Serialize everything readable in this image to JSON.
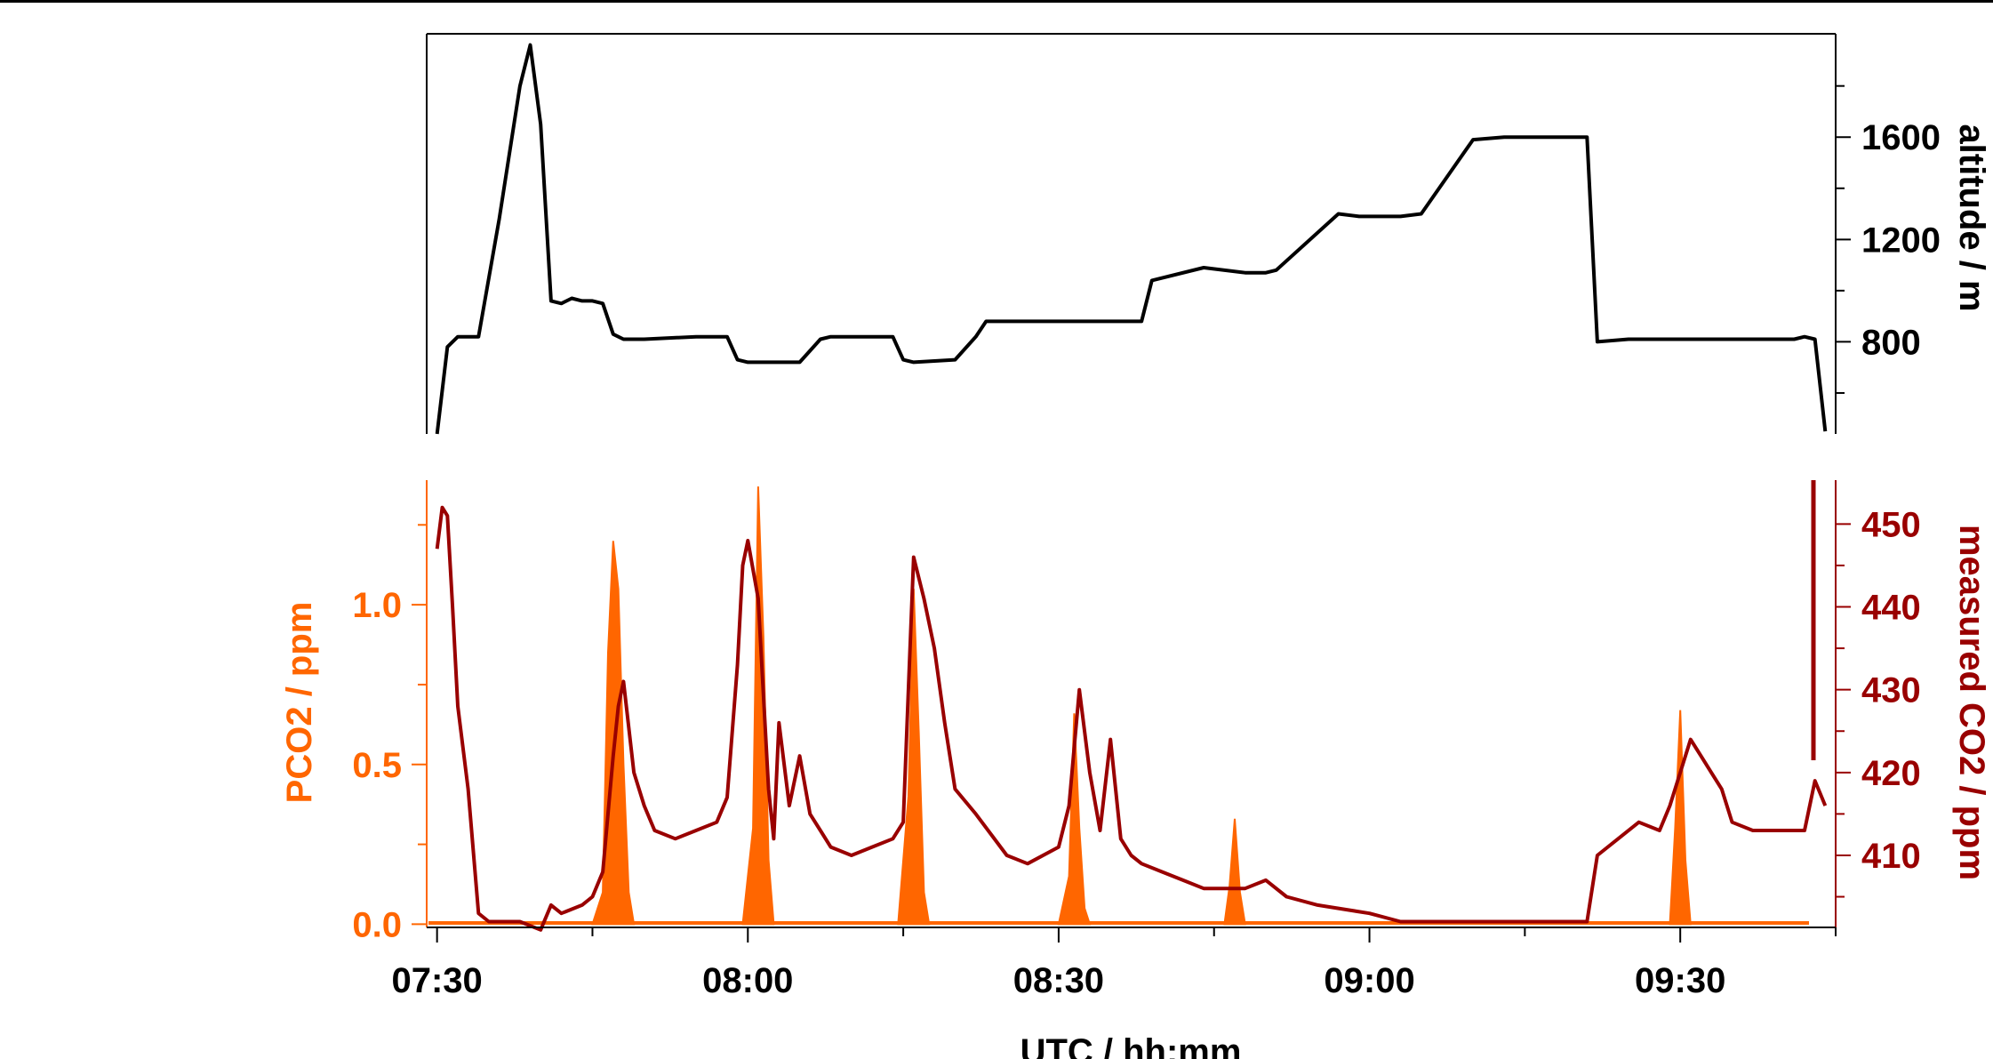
{
  "chart_data": [
    {
      "type": "line",
      "panel": "top",
      "ylabel": "altitude / m",
      "y_axis_side": "right",
      "yticks": [
        800,
        1200,
        1600
      ],
      "ylim": [
        440,
        1990
      ],
      "xlim": [
        "07:29",
        "09:45"
      ],
      "grid": false,
      "series": [
        {
          "color": "#000000",
          "x": [
            "07:30",
            "07:31",
            "07:32",
            "07:33",
            "07:34",
            "07:36",
            "07:38",
            "07:39",
            "07:40",
            "07:41",
            "07:42",
            "07:43",
            "07:44",
            "07:45",
            "07:46",
            "07:47",
            "07:48",
            "07:50",
            "07:55",
            "07:58",
            "07:59",
            "08:00",
            "08:05",
            "08:07",
            "08:08",
            "08:14",
            "08:15",
            "08:16",
            "08:20",
            "08:22",
            "08:23",
            "08:30",
            "08:36",
            "08:38",
            "08:39",
            "08:44",
            "08:48",
            "08:50",
            "08:51",
            "08:57",
            "08:59",
            "09:00",
            "09:03",
            "09:05",
            "09:10",
            "09:13",
            "09:14",
            "09:15",
            "09:16",
            "09:21",
            "09:22",
            "09:25",
            "09:30",
            "09:38",
            "09:41",
            "09:42",
            "09:43",
            "09:44"
          ],
          "values": [
            440,
            780,
            820,
            820,
            820,
            1280,
            1800,
            1960,
            1650,
            960,
            950,
            970,
            960,
            960,
            950,
            830,
            810,
            810,
            820,
            820,
            730,
            720,
            720,
            810,
            820,
            820,
            730,
            720,
            730,
            820,
            880,
            880,
            880,
            880,
            1040,
            1090,
            1070,
            1070,
            1080,
            1300,
            1290,
            1290,
            1290,
            1300,
            1590,
            1600,
            1600,
            1600,
            1600,
            1600,
            800,
            810,
            810,
            810,
            810,
            820,
            810,
            450
          ]
        }
      ]
    },
    {
      "type": "area+line",
      "panel": "bottom",
      "xlabel": "UTC / hh:mm",
      "xticks": [
        "07:30",
        "08:00",
        "08:30",
        "09:00",
        "09:30"
      ],
      "xlim": [
        "07:29",
        "09:45"
      ],
      "grid": false,
      "series": [
        {
          "type": "area",
          "ylabel": "PCO2 / ppm",
          "y_axis_side": "left",
          "color": "#ff6600",
          "yticks": [
            0.0,
            0.5,
            1.0
          ],
          "ytick_labels": [
            "0.0",
            "0.5",
            "1.0"
          ],
          "ylim": [
            -0.01,
            1.39
          ],
          "x": [
            "07:45",
            "07:46",
            "07:46.5",
            "07:47",
            "07:47.5",
            "07:48",
            "07:48.5",
            "07:49",
            "07:59.5",
            "08:00.5",
            "08:01",
            "08:01.5",
            "08:02",
            "08:02.5",
            "08:14.5",
            "08:15.5",
            "08:16",
            "08:16.5",
            "08:17",
            "08:17.5",
            "08:30",
            "08:31",
            "08:31.5",
            "08:32",
            "08:32.5",
            "08:33",
            "08:46",
            "08:46.5",
            "08:47",
            "08:47.5",
            "08:48",
            "09:29",
            "09:29.5",
            "09:30",
            "09:30.5",
            "09:31"
          ],
          "values": [
            0.0,
            0.1,
            0.85,
            1.2,
            1.05,
            0.5,
            0.1,
            0.0,
            0.0,
            0.3,
            1.37,
            0.9,
            0.2,
            0.0,
            0.0,
            0.4,
            1.05,
            0.6,
            0.1,
            0.0,
            0.0,
            0.15,
            0.66,
            0.3,
            0.05,
            0.0,
            0.0,
            0.12,
            0.33,
            0.1,
            0.0,
            0.0,
            0.3,
            0.67,
            0.2,
            0.0
          ]
        },
        {
          "type": "line",
          "ylabel": "measured CO2 / ppm",
          "y_axis_side": "right",
          "color": "#990000",
          "yticks": [
            410,
            420,
            430,
            440,
            450
          ],
          "ylim": [
            401.3,
            455.3
          ],
          "x": [
            "07:30",
            "07:30.5",
            "07:31",
            "07:31.5",
            "07:32",
            "07:33",
            "07:34",
            "07:35",
            "07:36",
            "07:37",
            "07:38",
            "07:40",
            "07:41",
            "07:42",
            "07:44",
            "07:45",
            "07:46",
            "07:47",
            "07:47.5",
            "07:48",
            "07:49",
            "07:50",
            "07:51",
            "07:53",
            "07:55",
            "07:57",
            "07:58",
            "07:59",
            "07:59.5",
            "08:00",
            "08:01",
            "08:02",
            "08:02.5",
            "08:03",
            "08:04",
            "08:05",
            "08:06",
            "08:07",
            "08:08",
            "08:10",
            "08:12",
            "08:14",
            "08:15",
            "08:15.5",
            "08:16",
            "08:17",
            "08:18",
            "08:19",
            "08:20",
            "08:22",
            "08:25",
            "08:27",
            "08:30",
            "08:31",
            "08:32",
            "08:33",
            "08:34",
            "08:35",
            "08:36",
            "08:37",
            "08:38",
            "08:40",
            "08:42",
            "08:44",
            "08:46",
            "08:48",
            "08:50",
            "08:52",
            "08:55",
            "09:00",
            "09:03",
            "09:05",
            "09:10",
            "09:15",
            "09:20",
            "09:21",
            "09:22",
            "09:24",
            "09:26",
            "09:28",
            "09:29",
            "09:30",
            "09:31",
            "09:32",
            "09:33",
            "09:34",
            "09:35",
            "09:37",
            "09:40",
            "09:42",
            "09:43",
            "09:44"
          ],
          "values": [
            447,
            452,
            451,
            440,
            428,
            418,
            403,
            402,
            402,
            402,
            402,
            401,
            404,
            403,
            404,
            405,
            408,
            422,
            428,
            431,
            420,
            416,
            413,
            412,
            413,
            414,
            417,
            433,
            445,
            448,
            441,
            418,
            412,
            426,
            416,
            422,
            415,
            413,
            411,
            410,
            411,
            412,
            414,
            430,
            446,
            441,
            435,
            426,
            418,
            415,
            410,
            409,
            411,
            416,
            430,
            420,
            413,
            424,
            412,
            410,
            409,
            408,
            407,
            406,
            406,
            406,
            407,
            405,
            404,
            403,
            402,
            402,
            402,
            402,
            402,
            402,
            410,
            412,
            414,
            413,
            416,
            420,
            424,
            422,
            420,
            418,
            414,
            413,
            413,
            413,
            419,
            416
          ]
        }
      ]
    }
  ]
}
